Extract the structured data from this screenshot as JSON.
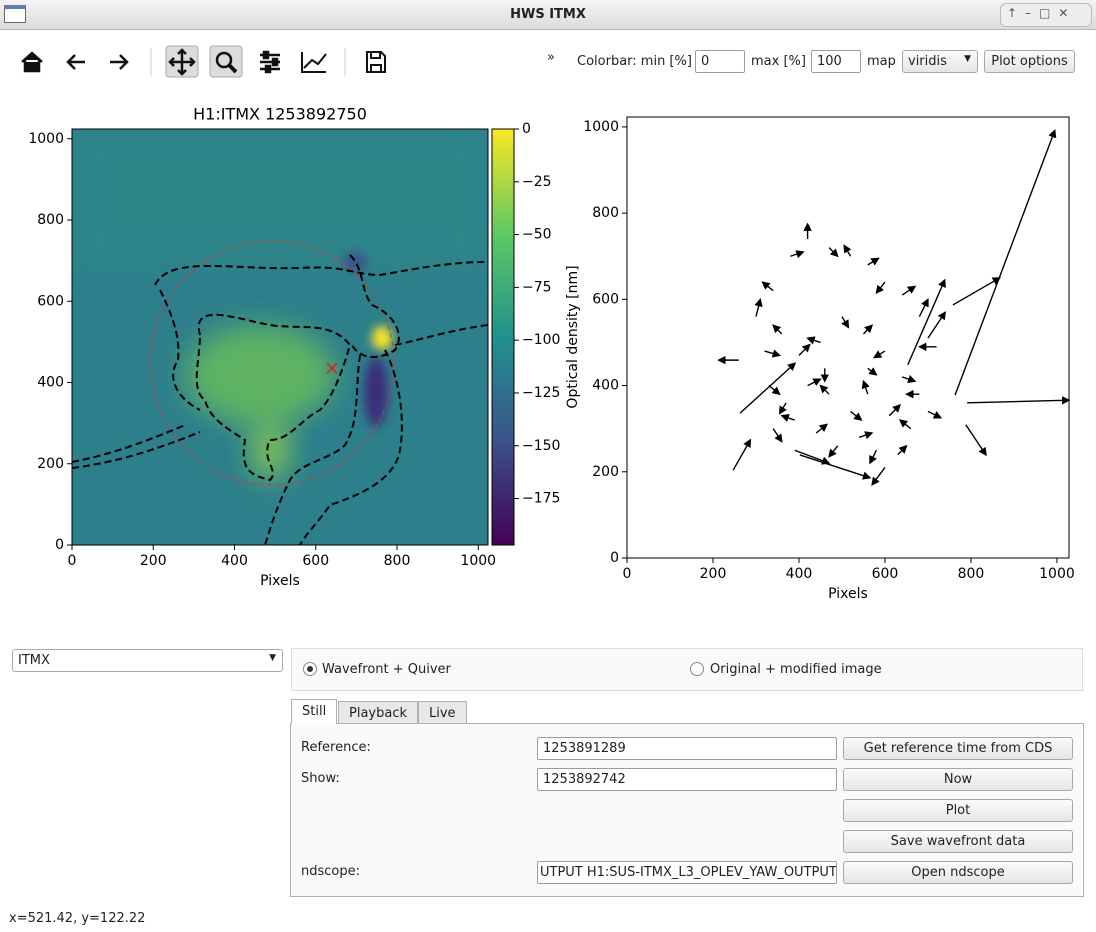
{
  "window": {
    "title": "HWS ITMX"
  },
  "toolbar": {
    "overflow": "»",
    "colorbar_min_label": "Colorbar: min [%]",
    "colorbar_min": "0",
    "colorbar_max_label": "max [%]",
    "colorbar_max": "100",
    "map_label": "map",
    "map": "viridis",
    "plot_options": "Plot options"
  },
  "chart_data": [
    {
      "type": "heatmap",
      "title": "H1:ITMX 1253892750",
      "x_label": "Pixels",
      "xlim": [
        0,
        1024
      ],
      "ylim": [
        0,
        1024
      ],
      "xticks": [
        0,
        200,
        400,
        600,
        800,
        1000
      ],
      "yticks": [
        0,
        200,
        400,
        600,
        800,
        1000
      ],
      "colorbar": {
        "label": "Optical density [nm]",
        "colormap": "viridis",
        "lim": [
          -197,
          0
        ],
        "ticks": [
          0,
          {
            "value": -25,
            "label": "−25"
          },
          {
            "value": -50,
            "label": "−50"
          },
          {
            "value": -75,
            "label": "−75"
          },
          {
            "value": -100,
            "label": "−100"
          },
          {
            "value": -125,
            "label": "−125"
          },
          {
            "value": -150,
            "label": "−150"
          },
          {
            "value": -175,
            "label": "−175"
          }
        ]
      },
      "marker": {
        "x": 640,
        "y": 435,
        "color": "#e02020"
      }
    },
    {
      "type": "quiver",
      "x_label": "Pixels",
      "color": "#000000",
      "xlim": [
        0,
        1028
      ],
      "ylim": [
        0,
        1023
      ],
      "xticks": [
        0,
        200,
        400,
        600,
        800,
        1000
      ],
      "yticks": [
        0,
        200,
        400,
        600,
        800,
        1000
      ],
      "arrows": {
        "x": [
          763,
          758,
          791,
          263,
          247,
          260,
          402,
          788,
          653,
          700,
          390,
          600,
          720,
          300,
          340,
          380,
          420,
          470,
          520,
          560,
          600,
          640,
          680,
          320,
          360,
          400,
          450,
          500,
          550,
          600,
          640,
          680,
          330,
          370,
          420,
          470,
          520,
          560,
          610,
          660,
          700,
          340,
          390,
          440,
          490,
          540,
          580,
          630,
          460,
          560
        ],
        "y": [
          378,
          587,
          360,
          336,
          204,
          459,
          239,
          309,
          448,
          510,
          250,
          210,
          490,
          560,
          620,
          700,
          740,
          720,
          700,
          680,
          640,
          610,
          560,
          480,
          520,
          470,
          500,
          560,
          520,
          480,
          420,
          380,
          400,
          360,
          400,
          380,
          340,
          380,
          330,
          300,
          340,
          300,
          320,
          290,
          260,
          280,
          250,
          240,
          440,
          440
        ],
        "u": [
          232,
          109,
          237,
          128,
          40,
          -47,
          163,
          47,
          86,
          40,
          80,
          -30,
          -40,
          10,
          -25,
          30,
          0,
          20,
          -15,
          25,
          -20,
          30,
          20,
          35,
          -20,
          25,
          -30,
          15,
          20,
          -25,
          30,
          -30,
          25,
          -15,
          30,
          -20,
          25,
          -10,
          25,
          -25,
          30,
          20,
          -30,
          25,
          -20,
          30,
          -15,
          20,
          0,
          20
        ],
        "v": [
          614,
          63,
          6,
          116,
          70,
          0,
          -53,
          -70,
          197,
          60,
          -30,
          -40,
          0,
          40,
          20,
          10,
          35,
          -20,
          25,
          15,
          -25,
          20,
          40,
          -10,
          20,
          25,
          10,
          -25,
          20,
          -15,
          -10,
          0,
          -20,
          -25,
          15,
          20,
          -20,
          30,
          25,
          20,
          -15,
          -30,
          10,
          20,
          -25,
          10,
          -30,
          20,
          -30,
          -15
        ]
      }
    }
  ],
  "controls": {
    "optic": "ITMX",
    "modes": [
      "Wavefront + Quiver",
      "Original + modified image"
    ],
    "tabs": [
      "Still",
      "Playback",
      "Live"
    ],
    "reference_label": "Reference:",
    "reference": "1253891289",
    "reference_button": "Get reference time from CDS",
    "show_label": "Show:",
    "show": "1253892742",
    "now_button": "Now",
    "plot_button": "Plot",
    "save_button": "Save wavefront data",
    "ndscope_label": "ndscope:",
    "ndscope": "UTPUT H1:SUS-ITMX_L3_OPLEV_YAW_OUTPUT",
    "ndscope_button": "Open ndscope"
  },
  "status": "x=521.42, y=122.22"
}
